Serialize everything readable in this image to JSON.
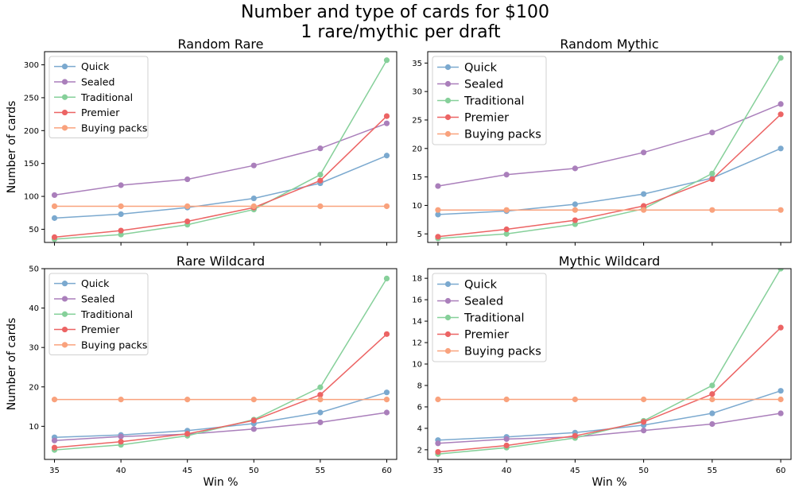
{
  "figure": {
    "title_line1": "Number and type of cards for $100",
    "title_line2": "1 rare/mythic per draft"
  },
  "colors": {
    "Quick": "#7ba9cf",
    "Sealed": "#aa7fbb",
    "Traditional": "#86d09a",
    "Premier": "#ec6464",
    "Buying packs": "#f9a27d"
  },
  "chart_data": [
    {
      "type": "line",
      "title": "Random Rare",
      "xlabel": "",
      "ylabel": "Number of cards",
      "x": [
        35,
        40,
        45,
        50,
        55,
        60
      ],
      "ylim": [
        30,
        320
      ],
      "yticks": [
        50,
        100,
        150,
        200,
        250,
        300
      ],
      "legend": "top-left",
      "legend_size": "small",
      "series": [
        {
          "name": "Quick",
          "values": [
            67,
            73,
            83,
            97,
            120,
            162
          ]
        },
        {
          "name": "Sealed",
          "values": [
            102,
            117,
            126,
            147,
            173,
            211
          ]
        },
        {
          "name": "Traditional",
          "values": [
            35,
            42,
            57,
            80,
            133,
            307
          ]
        },
        {
          "name": "Premier",
          "values": [
            38,
            48,
            62,
            83,
            124,
            222
          ]
        },
        {
          "name": "Buying packs",
          "values": [
            85,
            85,
            85,
            85,
            85,
            85
          ]
        }
      ]
    },
    {
      "type": "line",
      "title": "Random Mythic",
      "xlabel": "",
      "ylabel": "",
      "x": [
        35,
        40,
        45,
        50,
        55,
        60
      ],
      "ylim": [
        3.5,
        37
      ],
      "yticks": [
        5,
        10,
        15,
        20,
        25,
        30,
        35
      ],
      "legend": "top-left",
      "legend_size": "large",
      "series": [
        {
          "name": "Quick",
          "values": [
            8.4,
            9.0,
            10.2,
            12.0,
            14.8,
            20.0
          ]
        },
        {
          "name": "Sealed",
          "values": [
            13.4,
            15.4,
            16.5,
            19.3,
            22.8,
            27.8
          ]
        },
        {
          "name": "Traditional",
          "values": [
            4.2,
            5.0,
            6.7,
            9.4,
            15.6,
            35.9
          ]
        },
        {
          "name": "Premier",
          "values": [
            4.5,
            5.8,
            7.4,
            9.9,
            14.6,
            26.0
          ]
        },
        {
          "name": "Buying packs",
          "values": [
            9.2,
            9.2,
            9.2,
            9.2,
            9.2,
            9.2
          ]
        }
      ]
    },
    {
      "type": "line",
      "title": "Rare Wildcard",
      "xlabel": "Win %",
      "ylabel": "Number of cards",
      "x": [
        35,
        40,
        45,
        50,
        55,
        60
      ],
      "ylim": [
        1.6,
        50
      ],
      "yticks": [
        10,
        20,
        30,
        40,
        50
      ],
      "legend": "top-left",
      "legend_size": "small",
      "series": [
        {
          "name": "Quick",
          "values": [
            7.2,
            7.8,
            8.9,
            10.7,
            13.5,
            18.6
          ]
        },
        {
          "name": "Sealed",
          "values": [
            6.4,
            7.4,
            8.0,
            9.3,
            11.0,
            13.5
          ]
        },
        {
          "name": "Traditional",
          "values": [
            4.0,
            5.3,
            7.6,
            11.7,
            19.9,
            47.5
          ]
        },
        {
          "name": "Premier",
          "values": [
            4.6,
            6.1,
            8.1,
            11.5,
            18.0,
            33.4
          ]
        },
        {
          "name": "Buying packs",
          "values": [
            16.8,
            16.8,
            16.8,
            16.8,
            16.8,
            16.8
          ]
        }
      ]
    },
    {
      "type": "line",
      "title": "Mythic Wildcard",
      "xlabel": "Win %",
      "ylabel": "",
      "x": [
        35,
        40,
        45,
        50,
        55,
        60
      ],
      "ylim": [
        1.1,
        18.9
      ],
      "yticks": [
        2,
        4,
        6,
        8,
        10,
        12,
        14,
        16,
        18
      ],
      "legend": "top-left",
      "legend_size": "large",
      "series": [
        {
          "name": "Quick",
          "values": [
            2.9,
            3.2,
            3.6,
            4.3,
            5.4,
            7.5
          ]
        },
        {
          "name": "Sealed",
          "values": [
            2.6,
            3.0,
            3.2,
            3.8,
            4.4,
            5.4
          ]
        },
        {
          "name": "Traditional",
          "values": [
            1.6,
            2.2,
            3.1,
            4.7,
            8.0,
            18.9
          ]
        },
        {
          "name": "Premier",
          "values": [
            1.8,
            2.4,
            3.3,
            4.6,
            7.2,
            13.4
          ]
        },
        {
          "name": "Buying packs",
          "values": [
            6.7,
            6.7,
            6.7,
            6.7,
            6.7,
            6.7
          ]
        }
      ]
    }
  ]
}
